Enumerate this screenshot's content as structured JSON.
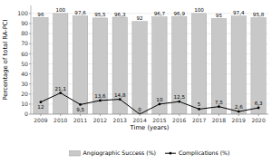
{
  "chart_data": {
    "type": "bar",
    "xlabel": "Time (years)",
    "ylabel": "Percentage of total RA-PCI",
    "categories": [
      "2009",
      "2010",
      "2011",
      "2012",
      "2013",
      "2014",
      "2015",
      "2016",
      "2017",
      "2018",
      "2019",
      "2020"
    ],
    "series": [
      {
        "name": "Angiographic Success (%)",
        "type": "bar",
        "color": "#c8c8c8",
        "values": [
          96,
          100,
          97.6,
          95.5,
          96.3,
          92,
          96.7,
          96.9,
          100,
          95,
          97.4,
          95.8
        ],
        "value_labels": [
          "96",
          "100",
          "97,6",
          "95,5",
          "96,3",
          "92",
          "96,7",
          "96,9",
          "100",
          "95",
          "97,4",
          "95,8"
        ]
      },
      {
        "name": "Complications (%)",
        "type": "line",
        "color": "#000000",
        "marker": "circle",
        "values": [
          12,
          21.1,
          9.5,
          13.6,
          14.8,
          0,
          10,
          12.5,
          5,
          7.5,
          2.6,
          6.3
        ],
        "value_labels": [
          "12",
          "21,1",
          "9,5",
          "13,6",
          "14,8",
          "0",
          "10",
          "12,5",
          "5",
          "7,5",
          "2,6",
          "6,3"
        ]
      }
    ],
    "ylim": [
      0,
      108
    ],
    "yticks": [
      0,
      10,
      20,
      30,
      40,
      50,
      60,
      70,
      80,
      90,
      100
    ],
    "grid": true,
    "data_labels": true,
    "legend": "bottom"
  }
}
